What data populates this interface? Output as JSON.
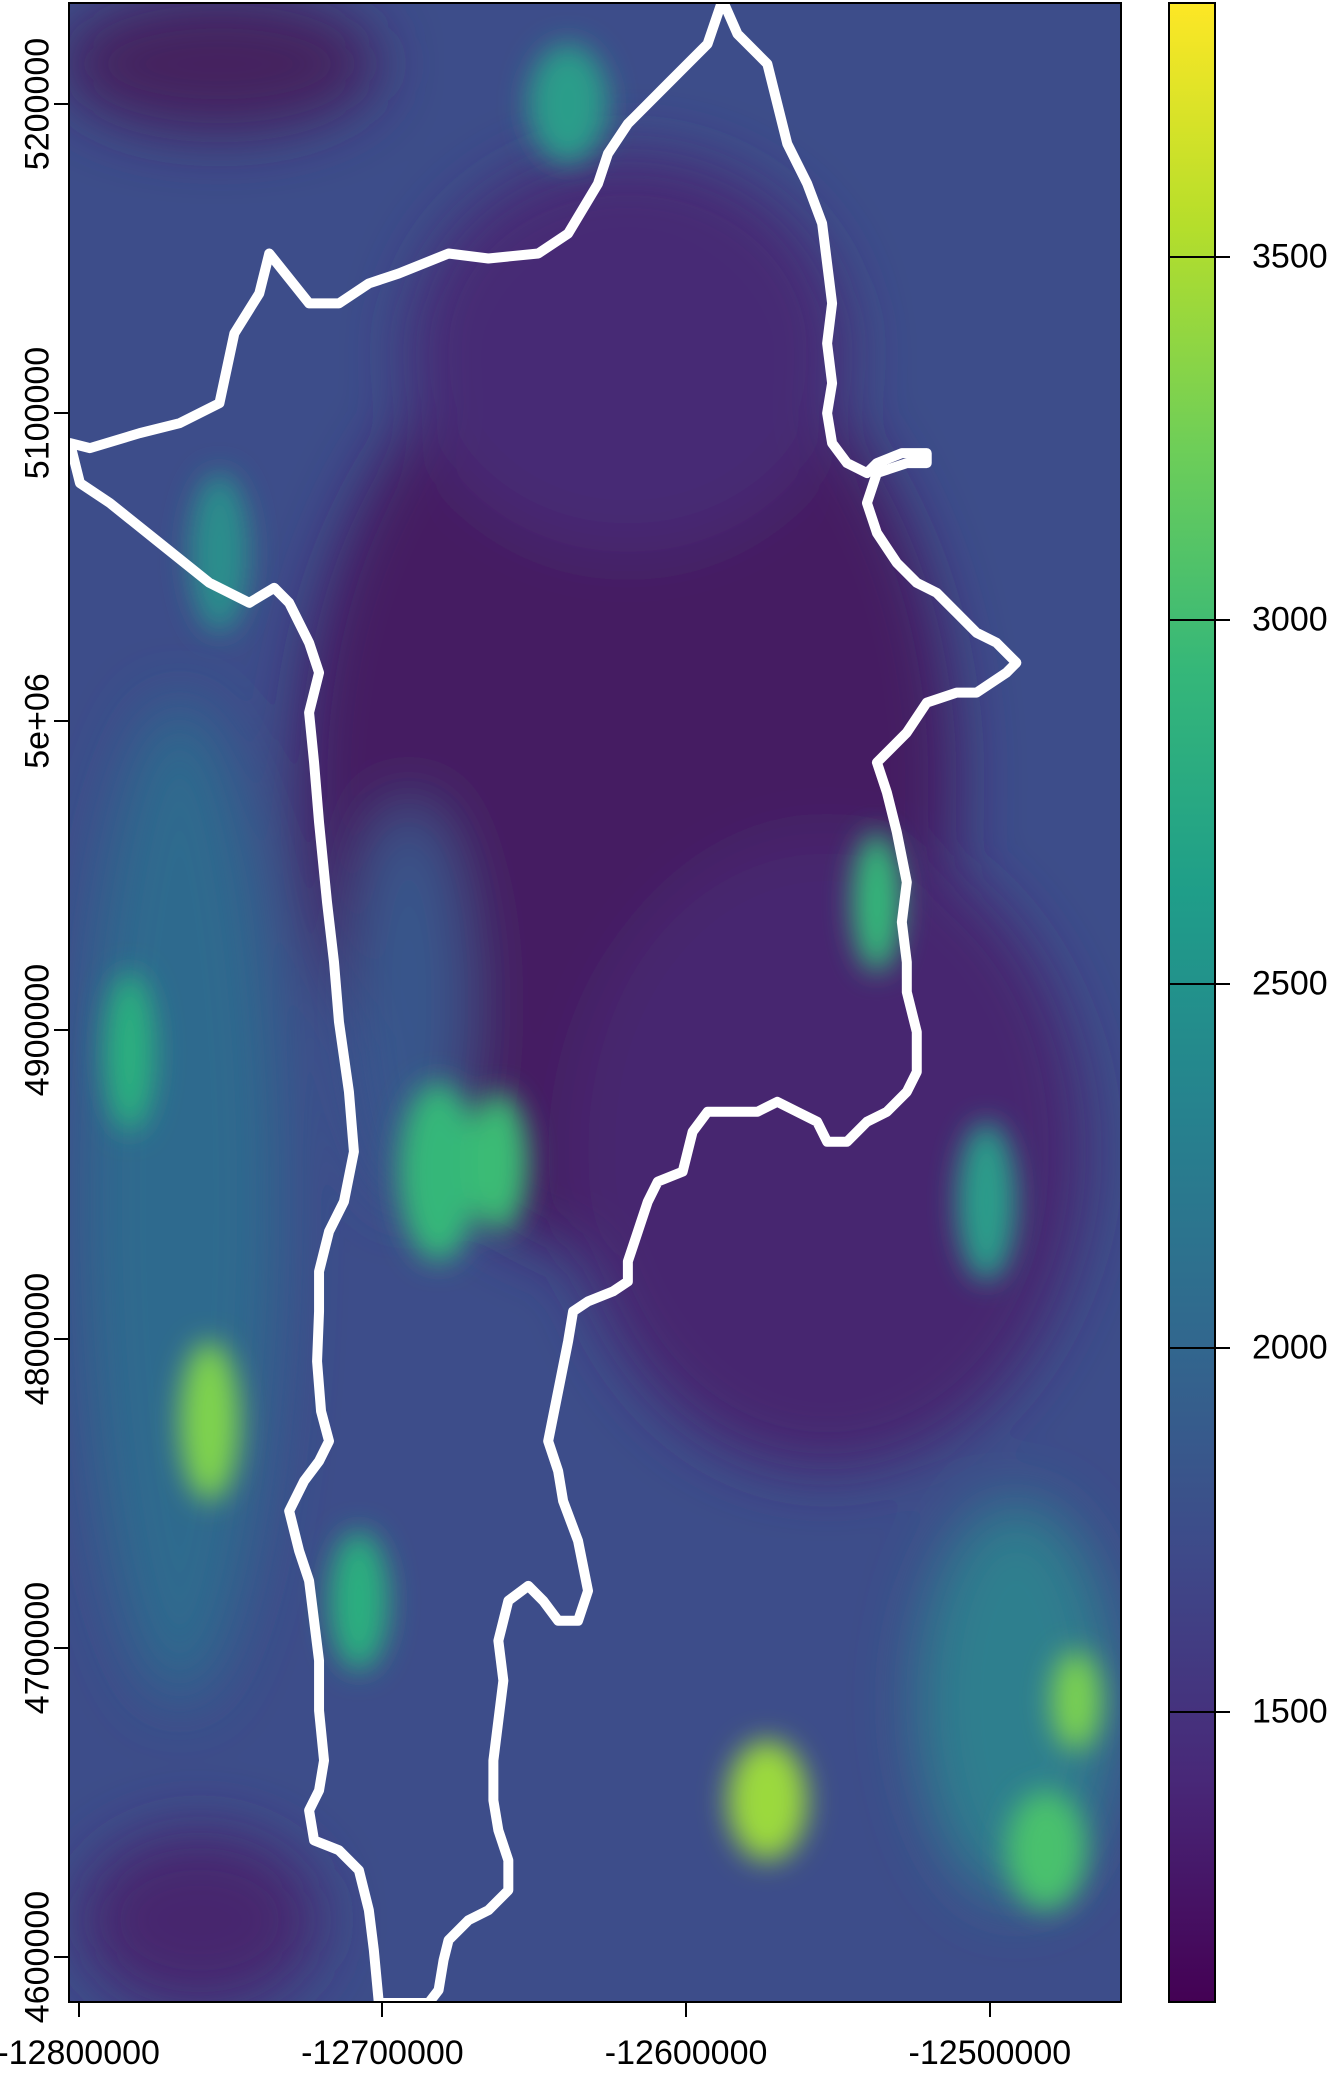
{
  "map": {
    "x_ticks": [
      {
        "label": "-12800000",
        "value": -12800000
      },
      {
        "label": "-12700000",
        "value": -12700000
      },
      {
        "label": "-12600000",
        "value": -12600000
      },
      {
        "label": "-12500000",
        "value": -12500000
      }
    ],
    "y_ticks": [
      {
        "label": "5200000",
        "value": 5200000
      },
      {
        "label": "5100000",
        "value": 5100000
      },
      {
        "label": "5e+06",
        "value": 5000000
      },
      {
        "label": "4900000",
        "value": 4900000
      },
      {
        "label": "4800000",
        "value": 4800000
      },
      {
        "label": "4700000",
        "value": 4700000
      },
      {
        "label": "4600000",
        "value": 4600000
      }
    ],
    "x_range": [
      -12803500,
      -12456500
    ],
    "y_range": [
      4585000,
      5233000
    ],
    "boundary_color": "#ffffff",
    "raster_palette": "viridis"
  },
  "colorbar": {
    "ticks": [
      {
        "label": "3500",
        "value": 3500
      },
      {
        "label": "3000",
        "value": 3000
      },
      {
        "label": "2500",
        "value": 2500
      },
      {
        "label": "2000",
        "value": 2000
      },
      {
        "label": "1500",
        "value": 1500
      }
    ],
    "range": [
      1100,
      3850
    ],
    "colors": [
      "#440154",
      "#482878",
      "#3e4989",
      "#31688e",
      "#26828e",
      "#1f9e89",
      "#35b779",
      "#6ece58",
      "#b5de2b",
      "#fde725"
    ]
  }
}
